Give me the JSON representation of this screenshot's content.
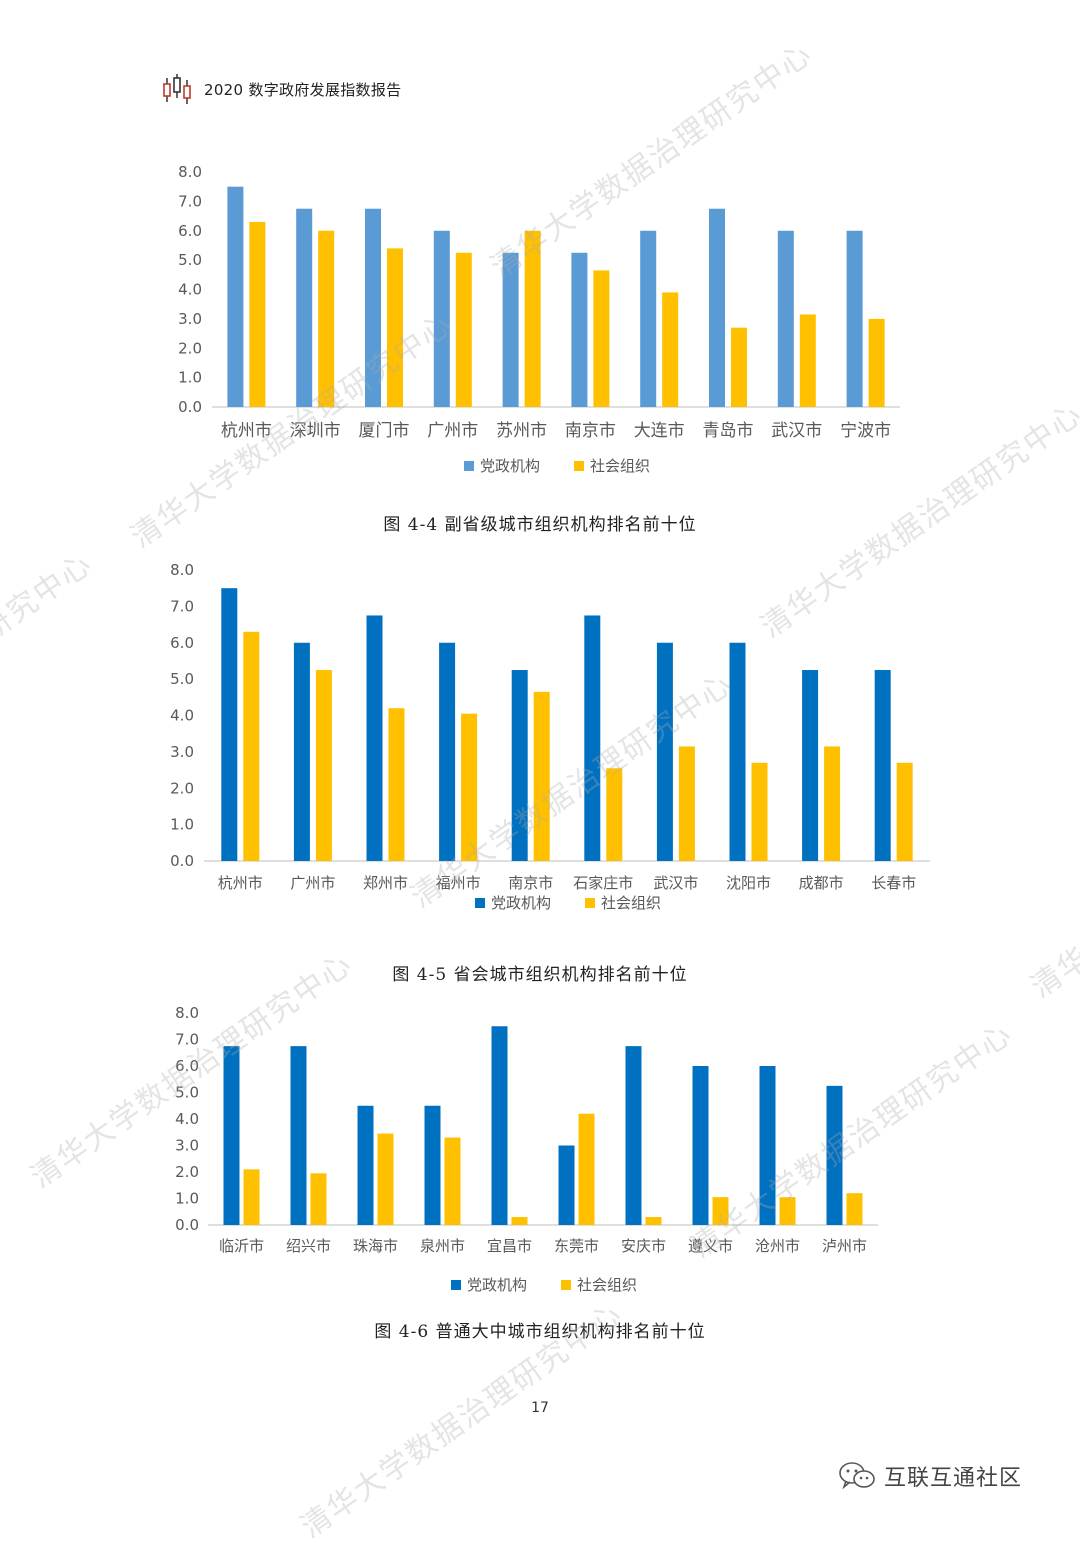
{
  "header": {
    "title": "2020 数字政府发展指数报告"
  },
  "watermark": {
    "text": "清华大学数据治理研究中心"
  },
  "page": {
    "number": "17"
  },
  "brand": {
    "text": "互联互通社区",
    "icon": "wechat-icon"
  },
  "colors": {
    "blue_light": "#5B9BD5",
    "blue_dark": "#0070C0",
    "yellow": "#FFC000",
    "axis": "#BFBFBF",
    "tick_text": "#595959"
  },
  "chart_data": [
    {
      "type": "bar",
      "caption": "图 4-4  副省级城市组织机构排名前十位",
      "categories": [
        "杭州市",
        "深圳市",
        "厦门市",
        "广州市",
        "苏州市",
        "南京市",
        "大连市",
        "青岛市",
        "武汉市",
        "宁波市"
      ],
      "series": [
        {
          "name": "党政机构",
          "color": "#5B9BD5",
          "values": [
            7.5,
            6.75,
            6.75,
            6.0,
            5.25,
            5.25,
            6.0,
            6.75,
            6.0,
            6.0
          ]
        },
        {
          "name": "社会组织",
          "color": "#FFC000",
          "values": [
            6.3,
            6.0,
            5.4,
            5.25,
            6.0,
            4.65,
            3.9,
            2.7,
            3.15,
            3.0
          ]
        }
      ],
      "ylim": [
        0,
        8
      ],
      "yticks": [
        "0.0",
        "1.0",
        "2.0",
        "3.0",
        "4.0",
        "5.0",
        "6.0",
        "7.0",
        "8.0"
      ],
      "legend": "bottom",
      "grid": false
    },
    {
      "type": "bar",
      "caption": "图 4-5  省会城市组织机构排名前十位",
      "categories": [
        "杭州市",
        "广州市",
        "郑州市",
        "福州市",
        "南京市",
        "石家庄市",
        "武汉市",
        "沈阳市",
        "成都市",
        "长春市"
      ],
      "series": [
        {
          "name": "党政机构",
          "color": "#0070C0",
          "values": [
            7.5,
            6.0,
            6.75,
            6.0,
            5.25,
            6.75,
            6.0,
            6.0,
            5.25,
            5.25
          ]
        },
        {
          "name": "社会组织",
          "color": "#FFC000",
          "values": [
            6.3,
            5.25,
            4.2,
            4.05,
            4.65,
            2.55,
            3.15,
            2.7,
            3.15,
            2.7
          ]
        }
      ],
      "ylim": [
        0,
        8
      ],
      "yticks": [
        "0.0",
        "1.0",
        "2.0",
        "3.0",
        "4.0",
        "5.0",
        "6.0",
        "7.0",
        "8.0"
      ],
      "legend": "bottom",
      "grid": false
    },
    {
      "type": "bar",
      "caption": "图 4-6  普通大中城市组织机构排名前十位",
      "categories": [
        "临沂市",
        "绍兴市",
        "珠海市",
        "泉州市",
        "宜昌市",
        "东莞市",
        "安庆市",
        "遵义市",
        "沧州市",
        "泸州市"
      ],
      "series": [
        {
          "name": "党政机构",
          "color": "#0070C0",
          "values": [
            6.75,
            6.75,
            4.5,
            4.5,
            7.5,
            3.0,
            6.75,
            6.0,
            6.0,
            5.25
          ]
        },
        {
          "name": "社会组织",
          "color": "#FFC000",
          "values": [
            2.1,
            1.95,
            3.45,
            3.3,
            0.3,
            4.2,
            0.3,
            1.05,
            1.05,
            1.2
          ]
        }
      ],
      "ylim": [
        0,
        8
      ],
      "yticks": [
        "0.0",
        "1.0",
        "2.0",
        "3.0",
        "4.0",
        "5.0",
        "6.0",
        "7.0",
        "8.0"
      ],
      "legend": "bottom",
      "grid": false
    }
  ]
}
